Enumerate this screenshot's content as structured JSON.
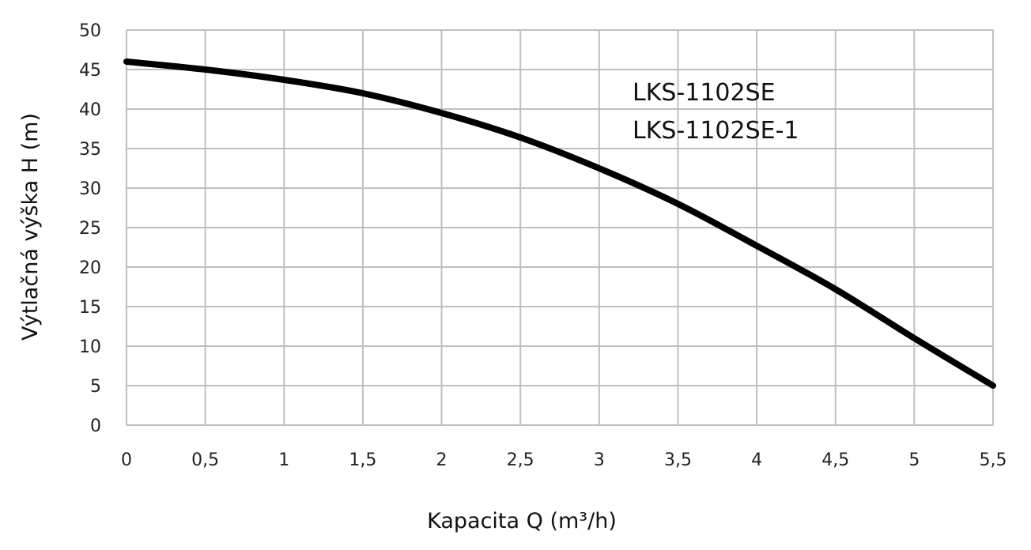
{
  "chart_data": {
    "type": "line",
    "xlabel": "Kapacita Q (m³/h)",
    "ylabel": "Výtlačná výška H (m)",
    "xlim": [
      0,
      5.5
    ],
    "ylim": [
      0,
      50
    ],
    "xticks": [
      0,
      0.5,
      1,
      1.5,
      2,
      2.5,
      3,
      3.5,
      4,
      4.5,
      5,
      5.5
    ],
    "xtick_labels": [
      "0",
      "0,5",
      "1",
      "1,5",
      "2",
      "2,5",
      "3",
      "3,5",
      "4",
      "4,5",
      "5",
      "5,5"
    ],
    "yticks": [
      0,
      5,
      10,
      15,
      20,
      25,
      30,
      35,
      40,
      45,
      50
    ],
    "ytick_labels": [
      "0",
      "5",
      "10",
      "15",
      "20",
      "25",
      "30",
      "35",
      "40",
      "45",
      "50"
    ],
    "grid": true,
    "annotations": [
      "LKS-1102SE",
      "LKS-1102SE-1"
    ],
    "series": [
      {
        "color": "#000000",
        "x": [
          0,
          0.5,
          1,
          1.5,
          2,
          2.5,
          3,
          3.5,
          4,
          4.5,
          5,
          5.5
        ],
        "y": [
          46,
          45,
          43.7,
          42,
          39.5,
          36.4,
          32.5,
          28,
          22.7,
          17.2,
          11,
          5
        ]
      }
    ]
  }
}
